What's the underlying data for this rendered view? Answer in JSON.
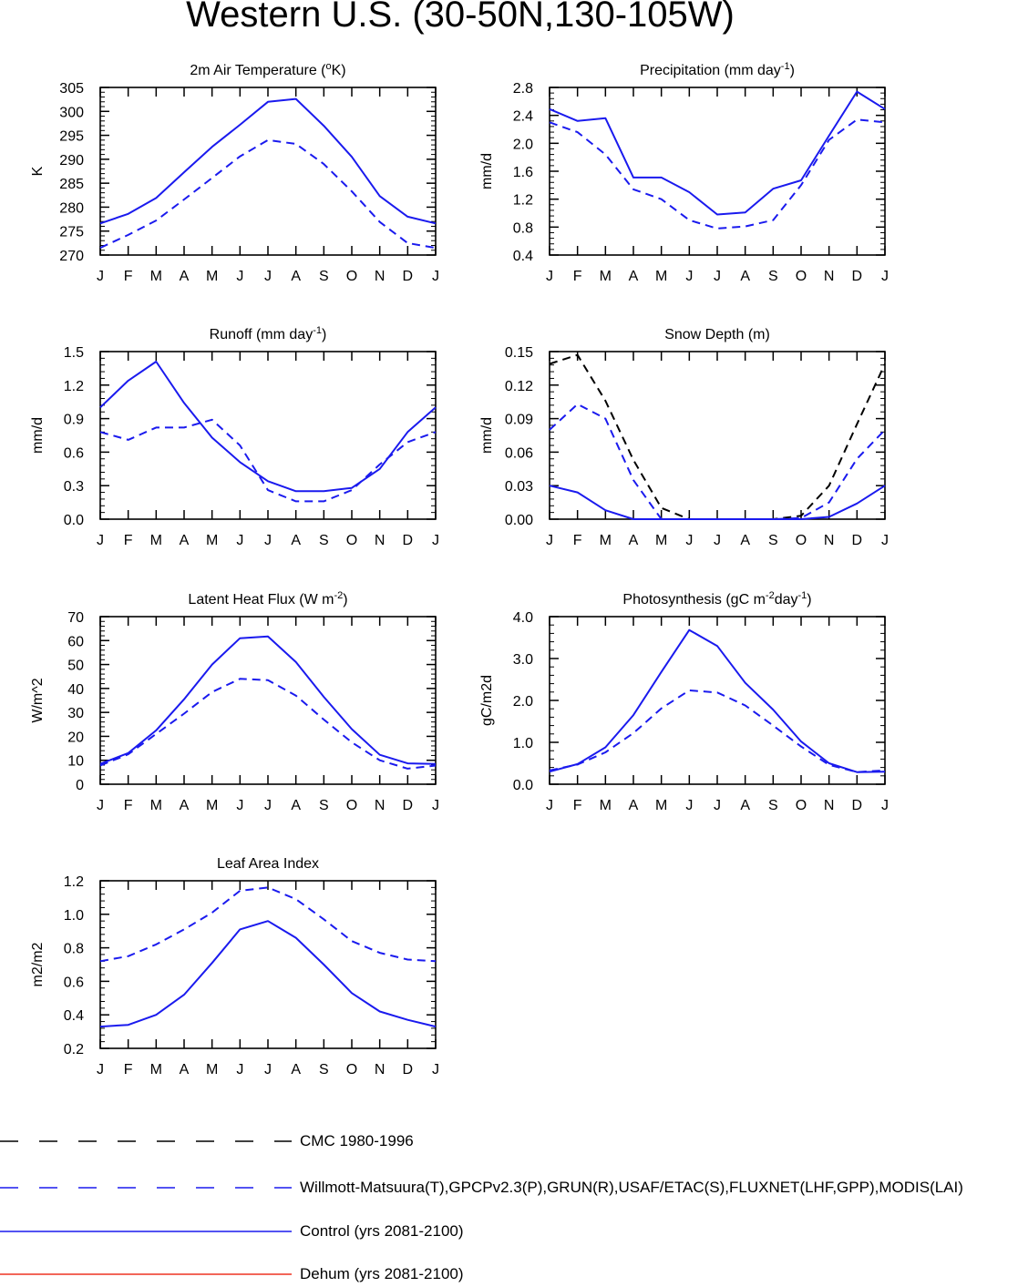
{
  "title": "Western U.S. (30-50N,130-105W)",
  "months": [
    "J",
    "F",
    "M",
    "A",
    "M",
    "J",
    "J",
    "A",
    "S",
    "O",
    "N",
    "D",
    "J"
  ],
  "colors": {
    "obs": "#1a1aee",
    "control": "#1a1aee",
    "cmc": "#000000",
    "dehum": "#ee3322"
  },
  "chart_data": [
    {
      "id": "temp",
      "type": "line",
      "title": "2m Air Temperature (",
      "title_sup": "o",
      "title_post": "K)",
      "ylabel": "K",
      "ylim": [
        270,
        305
      ],
      "yticks": [
        "270",
        "275",
        "280",
        "285",
        "290",
        "295",
        "300",
        "305"
      ],
      "ytick_values": [
        270,
        275,
        280,
        285,
        290,
        295,
        300,
        305
      ],
      "series": [
        {
          "name": "Control (yrs 2081-2100)",
          "style": "solid",
          "color": "#1a1aee",
          "values": [
            276.6,
            278.6,
            281.9,
            287.3,
            292.6,
            297.2,
            302.0,
            302.6,
            297.0,
            290.5,
            282.3,
            278.0,
            276.6
          ]
        },
        {
          "name": "Willmott-Matsuura(T)",
          "style": "dash",
          "color": "#1a1aee",
          "values": [
            271.5,
            274.2,
            277.2,
            281.6,
            286.1,
            290.6,
            294.0,
            293.2,
            289.0,
            283.3,
            276.9,
            272.5,
            271.5
          ]
        }
      ]
    },
    {
      "id": "precip",
      "type": "line",
      "title": "Precipitation (mm day",
      "title_sup": "-1",
      "title_post": ")",
      "ylabel": "mm/d",
      "ylim": [
        0.4,
        2.8
      ],
      "yticks": [
        "0.4",
        "0.8",
        "1.2",
        "1.6",
        "2.0",
        "2.4",
        "2.8"
      ],
      "ytick_values": [
        0.4,
        0.8,
        1.2,
        1.6,
        2.0,
        2.4,
        2.8
      ],
      "series": [
        {
          "name": "Control (yrs 2081-2100)",
          "style": "solid",
          "color": "#1a1aee",
          "values": [
            2.49,
            2.32,
            2.36,
            1.51,
            1.51,
            1.3,
            0.98,
            1.01,
            1.35,
            1.47,
            2.11,
            2.74,
            2.49
          ]
        },
        {
          "name": "GPCPv2.3(P)",
          "style": "dash",
          "color": "#1a1aee",
          "values": [
            2.3,
            2.16,
            1.84,
            1.34,
            1.2,
            0.9,
            0.78,
            0.81,
            0.9,
            1.4,
            2.05,
            2.34,
            2.3
          ]
        }
      ]
    },
    {
      "id": "runoff",
      "type": "line",
      "title": "Runoff (mm day",
      "title_sup": "-1",
      "title_post": ")",
      "ylabel": "mm/d",
      "ylim": [
        0.0,
        1.5
      ],
      "yticks": [
        "0.0",
        "0.3",
        "0.6",
        "0.9",
        "1.2",
        "1.5"
      ],
      "ytick_values": [
        0.0,
        0.3,
        0.6,
        0.9,
        1.2,
        1.5
      ],
      "series": [
        {
          "name": "Control (yrs 2081-2100)",
          "style": "solid",
          "color": "#1a1aee",
          "values": [
            1.0,
            1.24,
            1.41,
            1.04,
            0.73,
            0.51,
            0.34,
            0.25,
            0.25,
            0.28,
            0.45,
            0.78,
            1.0
          ]
        },
        {
          "name": "GRUN(R)",
          "style": "dash",
          "color": "#1a1aee",
          "values": [
            0.78,
            0.71,
            0.82,
            0.82,
            0.89,
            0.66,
            0.26,
            0.16,
            0.16,
            0.26,
            0.49,
            0.69,
            0.78
          ]
        }
      ]
    },
    {
      "id": "snow",
      "type": "line",
      "title": "Snow Depth (m)",
      "title_sup": "",
      "title_post": "",
      "ylabel": "mm/d",
      "ylim": [
        0.0,
        0.15
      ],
      "yticks": [
        "0.00",
        "0.03",
        "0.06",
        "0.09",
        "0.12",
        "0.15"
      ],
      "ytick_values": [
        0.0,
        0.03,
        0.06,
        0.09,
        0.12,
        0.15
      ],
      "series": [
        {
          "name": "CMC 1980-1996",
          "style": "dash",
          "color": "#000000",
          "values": [
            0.139,
            0.147,
            0.106,
            0.053,
            0.01,
            0.0,
            0.0,
            0.0,
            0.0,
            0.003,
            0.03,
            0.085,
            0.139
          ]
        },
        {
          "name": "USAF/ETAC(S)",
          "style": "dash",
          "color": "#1a1aee",
          "values": [
            0.08,
            0.103,
            0.09,
            0.035,
            0.0,
            0.0,
            0.0,
            0.0,
            0.0,
            0.001,
            0.015,
            0.054,
            0.08
          ]
        },
        {
          "name": "Control (yrs 2081-2100)",
          "style": "solid",
          "color": "#1a1aee",
          "values": [
            0.03,
            0.024,
            0.008,
            0.0,
            0.0,
            0.0,
            0.0,
            0.0,
            0.0,
            0.0,
            0.002,
            0.014,
            0.03
          ]
        }
      ]
    },
    {
      "id": "lhf",
      "type": "line",
      "title": "Latent Heat Flux (W m",
      "title_sup": "-2",
      "title_post": ")",
      "ylabel": "W/m^2",
      "ylim": [
        0,
        70
      ],
      "yticks": [
        "0",
        "10",
        "20",
        "30",
        "40",
        "50",
        "60",
        "70"
      ],
      "ytick_values": [
        0,
        10,
        20,
        30,
        40,
        50,
        60,
        70
      ],
      "series": [
        {
          "name": "Control (yrs 2081-2100)",
          "style": "solid",
          "color": "#1a1aee",
          "values": [
            8.5,
            13.0,
            22.5,
            35.5,
            50.0,
            61.0,
            61.7,
            51.0,
            36.5,
            23.0,
            12.3,
            8.7,
            8.5
          ]
        },
        {
          "name": "FLUXNET(LHF)",
          "style": "dash",
          "color": "#1a1aee",
          "values": [
            7.8,
            12.5,
            21.0,
            29.5,
            38.5,
            44.0,
            43.5,
            37.0,
            27.0,
            17.5,
            10.0,
            6.5,
            7.8
          ]
        }
      ]
    },
    {
      "id": "gpp",
      "type": "line",
      "title": "Photosynthesis (gC m",
      "title_sup": "-2",
      "title_post": "day",
      "title_sup2": "-1",
      "title_post2": ")",
      "ylabel": "gC/m2d",
      "ylim": [
        0.0,
        4.0
      ],
      "yticks": [
        "0.0",
        "1.0",
        "2.0",
        "3.0",
        "4.0"
      ],
      "ytick_values": [
        0.0,
        1.0,
        2.0,
        3.0,
        4.0
      ],
      "series": [
        {
          "name": "Control (yrs 2081-2100)",
          "style": "solid",
          "color": "#1a1aee",
          "values": [
            0.3,
            0.48,
            0.88,
            1.65,
            2.68,
            3.68,
            3.3,
            2.42,
            1.78,
            1.02,
            0.5,
            0.29,
            0.3
          ]
        },
        {
          "name": "FLUXNET(GPP)",
          "style": "dash",
          "color": "#1a1aee",
          "values": [
            0.33,
            0.47,
            0.76,
            1.22,
            1.81,
            2.24,
            2.19,
            1.88,
            1.4,
            0.9,
            0.46,
            0.29,
            0.33
          ]
        }
      ]
    },
    {
      "id": "lai",
      "type": "line",
      "title": "Leaf Area Index",
      "title_sup": "",
      "title_post": "",
      "ylabel": "m2/m2",
      "ylim": [
        0.2,
        1.2
      ],
      "yticks": [
        "0.2",
        "0.4",
        "0.6",
        "0.8",
        "1.0",
        "1.2"
      ],
      "ytick_values": [
        0.2,
        0.4,
        0.6,
        0.8,
        1.0,
        1.2
      ],
      "series": [
        {
          "name": "Control (yrs 2081-2100)",
          "style": "solid",
          "color": "#1a1aee",
          "values": [
            0.33,
            0.34,
            0.4,
            0.52,
            0.71,
            0.91,
            0.96,
            0.86,
            0.7,
            0.53,
            0.42,
            0.37,
            0.33
          ]
        },
        {
          "name": "MODIS(LAI)",
          "style": "dash",
          "color": "#1a1aee",
          "values": [
            0.72,
            0.75,
            0.82,
            0.91,
            1.01,
            1.14,
            1.16,
            1.09,
            0.97,
            0.84,
            0.77,
            0.73,
            0.72
          ]
        }
      ]
    }
  ],
  "legend": [
    {
      "label": "CMC 1980-1996",
      "style": "dash",
      "color": "#000000"
    },
    {
      "label": "Willmott-Matsuura(T),GPCPv2.3(P),GRUN(R),USAF/ETAC(S),FLUXNET(LHF,GPP),MODIS(LAI)",
      "style": "dash",
      "color": "#1a1aee"
    },
    {
      "label": "Control (yrs 2081-2100)",
      "style": "solid",
      "color": "#1a1aee"
    },
    {
      "label": "Dehum (yrs 2081-2100)",
      "style": "solid",
      "color": "#ee3322"
    }
  ]
}
